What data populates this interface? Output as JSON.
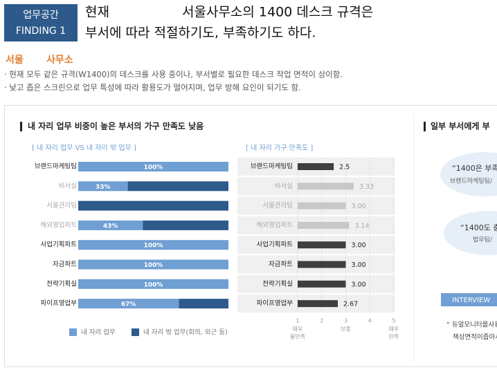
{
  "header": {
    "tag": "업무공간",
    "finding": "FINDING 1",
    "title_lines": [
      "현재",
      "서울사무소의 1400 데스크 규격은",
      "부서에 따라 적절하기도, 부족하기도 하다."
    ]
  },
  "subheading": [
    "서울",
    "사무소"
  ],
  "bullets": [
    "· 현재 모두 같은 규격(W1400)의 데스크를 사용 중이나, 부서별로 필요한 데스크 작업 면적이 상이함.",
    "· 낮고 좁은 스크린으로 업무 특성에 따라 활용도가 떨어지며, 업무 방해 요인이 되기도 함."
  ],
  "section_title": "내 자리 업무 비중이 높은 부서의 가구 만족도 낮음",
  "chart_data": [
    {
      "type": "bar",
      "orientation": "horizontal",
      "stacked": true,
      "subtitle": "[ 내 자리 업무 VS 내 자리 밖 업무 ]",
      "categories": [
        "브랜드마케팅팀",
        "비서실",
        "서울관리팀",
        "해외영업파트",
        "사업기획파트",
        "자금파트",
        "전략기획실",
        "파이프영업부"
      ],
      "category_colors": [
        "#222222",
        "#aaaaaa",
        "#aaaaaa",
        "#aaaaaa",
        "#222222",
        "#222222",
        "#222222",
        "#222222"
      ],
      "series": [
        {
          "name": "내 자리 업무",
          "color": "#6f9fd3",
          "values": [
            100,
            33,
            0,
            43,
            100,
            100,
            100,
            67
          ],
          "value_labels": [
            "100%",
            "33%",
            null,
            "43%",
            "100%",
            "100%",
            "100%",
            "67%"
          ]
        },
        {
          "name": "내 자리 밖 업무(회의, 외근 등)",
          "color": "#2e5a8c",
          "values": [
            0,
            67,
            100,
            57,
            0,
            0,
            0,
            33
          ]
        }
      ]
    },
    {
      "type": "bar",
      "orientation": "horizontal",
      "subtitle": "[ 내 자리 가구 만족도 ]",
      "categories": [
        "브랜드마케팅팀",
        "비서실",
        "서울관리팀",
        "해외영업파트",
        "사업기획파트",
        "자금파트",
        "전략기획실",
        "파이프영업부"
      ],
      "category_colors": [
        "#222222",
        "#aaaaaa",
        "#aaaaaa",
        "#aaaaaa",
        "#222222",
        "#222222",
        "#222222",
        "#222222"
      ],
      "values": [
        2.5,
        3.33,
        3.0,
        3.14,
        3.0,
        3.0,
        3.0,
        2.67
      ],
      "value_labels": [
        "2.5",
        "3.33",
        "3.00",
        "3.14",
        "3.00",
        "3.00",
        "3.00",
        "2.67"
      ],
      "colors": [
        "#3f3f3f",
        "#c8c8c8",
        "#c8c8c8",
        "#c8c8c8",
        "#3f3f3f",
        "#3f3f3f",
        "#3f3f3f",
        "#3f3f3f"
      ],
      "xlim": [
        1,
        5
      ],
      "xticks": [
        1,
        2,
        3,
        4,
        5
      ],
      "x_tick_notes": [
        {
          "value": 1,
          "label": [
            "매우",
            "불만족"
          ]
        },
        {
          "value": 3,
          "label": [
            "보통"
          ]
        },
        {
          "value": 5,
          "label": [
            "매우",
            "만족"
          ]
        }
      ]
    }
  ],
  "side": {
    "title": "일부 부서에게 부",
    "quotes": [
      {
        "text": "“1400은 부족",
        "source": "브랜드마케팅팀/"
      },
      {
        "text": "“1400도 충",
        "source": "법무팀/"
      }
    ],
    "interview": "INTERVIEW",
    "interview_lines": [
      "“ 듀얼모니터를사용",
      "책상면적이좁아서"
    ]
  }
}
